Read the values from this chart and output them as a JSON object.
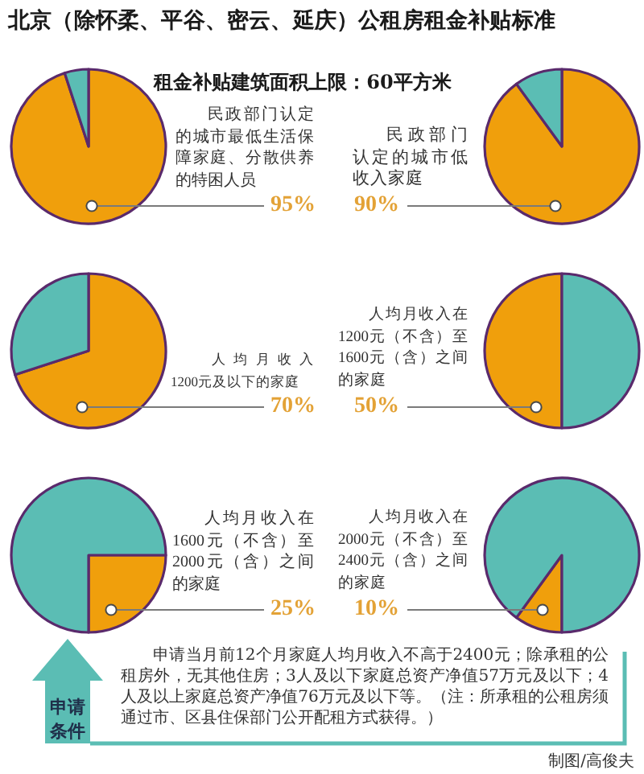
{
  "chart_data": [
    {
      "type": "other",
      "title": "北京（除怀柔、平谷、密云、延庆）公租房租金补贴标准",
      "subtitle": "租金补贴建筑面积上限：60平方米"
    },
    {
      "type": "pie",
      "title": "民政部门认定的城市最低生活保障家庭、分散供养的特困人员",
      "categories": [
        null,
        null
      ],
      "values": [
        95,
        5
      ],
      "colors": [
        "#f09f0c",
        "#5bbdb4"
      ],
      "value_labels": [
        "95%",
        null
      ]
    },
    {
      "type": "pie",
      "title": "民政部门认定的城市低收入家庭",
      "categories": [
        null,
        null
      ],
      "values": [
        90,
        10
      ],
      "colors": [
        "#f09f0c",
        "#5bbdb4"
      ],
      "value_labels": [
        "90%",
        null
      ]
    },
    {
      "type": "pie",
      "title": "人均月收入1200元及以下的家庭",
      "categories": [
        null,
        null
      ],
      "values": [
        70,
        30
      ],
      "colors": [
        "#f09f0c",
        "#5bbdb4"
      ],
      "value_labels": [
        "70%",
        null
      ]
    },
    {
      "type": "pie",
      "title": "人均月收入在1200元（不含）至1600元（含）之间的家庭",
      "categories": [
        null,
        null
      ],
      "values": [
        50,
        50
      ],
      "colors": [
        "#f09f0c",
        "#5bbdb4"
      ],
      "value_labels": [
        "50%",
        null
      ]
    },
    {
      "type": "pie",
      "title": "人均月收入在1600元（不含）至2000元（含）之间的家庭",
      "categories": [
        null,
        null
      ],
      "values": [
        25,
        75
      ],
      "colors": [
        "#f09f0c",
        "#5bbdb4"
      ],
      "value_labels": [
        "25%",
        null
      ]
    },
    {
      "type": "pie",
      "title": "人均月收入在2000元（不含）至2400元（含）之间的家庭",
      "categories": [
        null,
        null
      ],
      "values": [
        10,
        90
      ],
      "colors": [
        "#f09f0c",
        "#5bbdb4"
      ],
      "value_labels": [
        "10%",
        null
      ]
    },
    {
      "type": "other",
      "title": "申请条件",
      "annotations": [
        "申请当月前12个月家庭人均月收入不高于2400元；除承租的公租房外，无其他住房；3人及以下家庭总资产净值57万元及以下；4人及以上家庭总资产净值76万元及以下等。（注：所承租的公租房须通过市、区县住保部门公开配租方式获得。）",
        "制图/高俊夫"
      ]
    }
  ]
}
